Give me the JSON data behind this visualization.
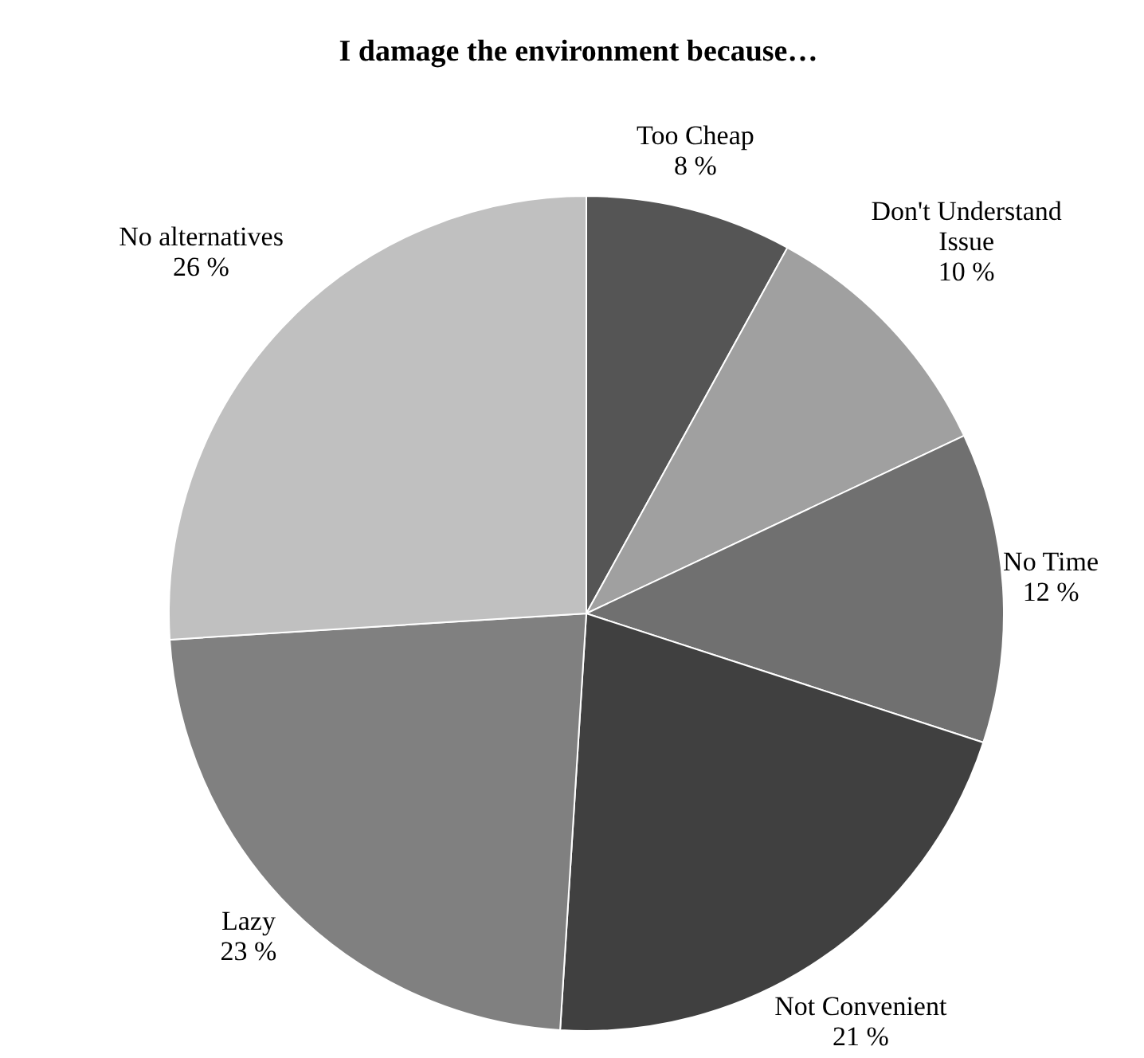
{
  "chart_data": {
    "type": "pie",
    "title": "I damage the environment because…",
    "categories": [
      "Too Cheap",
      "Don't Understand Issue",
      "No Time",
      "Not Convenient",
      "Lazy",
      "No alternatives"
    ],
    "values": [
      8,
      10,
      12,
      21,
      23,
      26
    ],
    "value_labels": [
      "8 %",
      "10 %",
      "12 %",
      "21 %",
      "23 %",
      "26 %"
    ],
    "colors": [
      "#555555",
      "#a0a0a0",
      "#707070",
      "#404040",
      "#808080",
      "#c0c0c0"
    ],
    "legend": false
  }
}
